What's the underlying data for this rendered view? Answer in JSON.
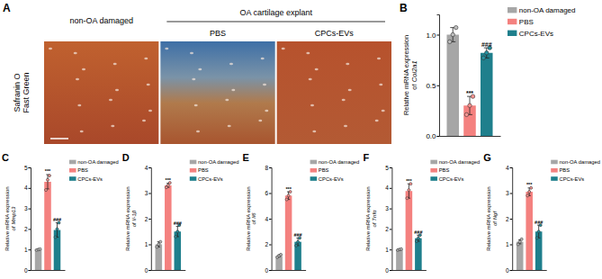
{
  "panel_a": {
    "panel": "A",
    "stain_label": [
      "Safranin O",
      "Fast Green"
    ],
    "group_label": "OA cartilage explant",
    "columns": [
      "non-OA damaged",
      "PBS",
      "CPCs-EVs"
    ]
  },
  "chart_data": [
    {
      "type": "bar",
      "panel": "B",
      "y_label": [
        "Relative mRNA expression",
        "of"
      ],
      "gene": "Col2a1",
      "categories": [
        null
      ],
      "series": [
        {
          "name": "non-OA damaged",
          "color": "#a6a6a6",
          "values": [
            1.0
          ],
          "errors": [
            0.07
          ],
          "points": [
            [
              0.93,
              1.0,
              1.07
            ]
          ]
        },
        {
          "name": "PBS",
          "color": "#f4817f",
          "values": [
            0.3
          ],
          "errors": [
            0.09
          ],
          "points": [
            [
              0.21,
              0.3,
              0.39
            ]
          ],
          "annotations": [
            "***"
          ]
        },
        {
          "name": "CPCs-EVs",
          "color": "#1f7f8c",
          "values": [
            0.82
          ],
          "errors": [
            0.05
          ],
          "points": [
            [
              0.77,
              0.82,
              0.87
            ]
          ],
          "annotations": [
            "###"
          ]
        }
      ],
      "ylim": [
        0,
        1.2
      ],
      "yticks": [
        {
          "value": 0,
          "label": "0.0"
        },
        0.5,
        {
          "value": 1,
          "label": "1.0"
        }
      ],
      "legend": "upper right",
      "tick_labels": "y",
      "grid": false
    },
    {
      "type": "bar",
      "panel": "C",
      "y_label": [
        "Relative mRNA expression",
        "of"
      ],
      "gene": "Mmp13",
      "categories": [
        null
      ],
      "series": [
        {
          "name": "non-OA damaged",
          "color": "#a6a6a6",
          "values": [
            1.0
          ],
          "errors": [
            0.03
          ],
          "points": [
            [
              0.97,
              1.0,
              1.02
            ]
          ]
        },
        {
          "name": "PBS",
          "color": "#f4817f",
          "values": [
            4.3
          ],
          "errors": [
            0.35
          ],
          "points": [
            [
              3.9,
              4.4,
              4.6
            ]
          ],
          "annotations": [
            "***"
          ]
        },
        {
          "name": "CPCs-EVs",
          "color": "#1f7f8c",
          "values": [
            1.95
          ],
          "errors": [
            0.35
          ],
          "points": [
            [
              1.6,
              2.0,
              2.3
            ]
          ],
          "annotations": [
            "###"
          ]
        }
      ],
      "ylim": [
        0,
        5
      ],
      "yticks": [
        0,
        1,
        2,
        3,
        4,
        5
      ],
      "legend": "upper right",
      "tick_labels": "y",
      "grid": false
    },
    {
      "type": "bar",
      "panel": "D",
      "y_label": [
        "Relative mRNA expression",
        "of"
      ],
      "gene": "Il-1β",
      "categories": [
        null
      ],
      "series": [
        {
          "name": "non-OA damaged",
          "color": "#a6a6a6",
          "values": [
            1.0
          ],
          "errors": [
            0.1
          ],
          "points": [
            [
              0.9,
              1.0,
              1.1
            ]
          ]
        },
        {
          "name": "PBS",
          "color": "#f4817f",
          "values": [
            3.3
          ],
          "errors": [
            0.08
          ],
          "points": [
            [
              3.22,
              3.3,
              3.4
            ]
          ],
          "annotations": [
            "***"
          ]
        },
        {
          "name": "CPCs-EVs",
          "color": "#1f7f8c",
          "values": [
            1.5
          ],
          "errors": [
            0.2
          ],
          "points": [
            [
              1.3,
              1.5,
              1.75
            ]
          ],
          "annotations": [
            "###"
          ]
        }
      ],
      "ylim": [
        0,
        4
      ],
      "yticks": [
        0,
        1,
        2,
        3,
        4
      ],
      "legend": "upper right",
      "tick_labels": "y",
      "grid": false
    },
    {
      "type": "bar",
      "panel": "E",
      "y_label": [
        "Relative mRNA expression",
        "of"
      ],
      "gene": "Il6",
      "categories": [
        null
      ],
      "series": [
        {
          "name": "non-OA damaged",
          "color": "#a6a6a6",
          "values": [
            1.1
          ],
          "errors": [
            0.08
          ],
          "points": [
            [
              1.0,
              1.1,
              1.2
            ]
          ]
        },
        {
          "name": "PBS",
          "color": "#f4817f",
          "values": [
            5.8
          ],
          "errors": [
            0.3
          ],
          "points": [
            [
              5.5,
              5.8,
              6.1
            ]
          ],
          "annotations": [
            "***"
          ]
        },
        {
          "name": "CPCs-EVs",
          "color": "#1f7f8c",
          "values": [
            2.2
          ],
          "errors": [
            0.3
          ],
          "points": [
            [
              1.9,
              2.2,
              2.5
            ]
          ],
          "annotations": [
            "###"
          ]
        }
      ],
      "ylim": [
        0,
        8
      ],
      "yticks": [
        0,
        2,
        4,
        6,
        8
      ],
      "legend": "upper right",
      "tick_labels": "y",
      "grid": false
    },
    {
      "type": "bar",
      "panel": "F",
      "y_label": [
        "Relative mRNA expression",
        "of"
      ],
      "gene": "Tnfα",
      "categories": [
        null
      ],
      "series": [
        {
          "name": "non-OA damaged",
          "color": "#a6a6a6",
          "values": [
            1.0
          ],
          "errors": [
            0.03
          ],
          "points": [
            [
              0.97,
              1.0,
              1.02
            ]
          ]
        },
        {
          "name": "PBS",
          "color": "#f4817f",
          "values": [
            3.85
          ],
          "errors": [
            0.35
          ],
          "points": [
            [
              3.5,
              3.9,
              4.2
            ]
          ],
          "annotations": [
            "***"
          ]
        },
        {
          "name": "CPCs-EVs",
          "color": "#1f7f8c",
          "values": [
            1.55
          ],
          "errors": [
            0.15
          ],
          "points": [
            [
              1.4,
              1.55,
              1.7
            ]
          ],
          "annotations": [
            "###"
          ]
        }
      ],
      "ylim": [
        0,
        5
      ],
      "yticks": [
        0,
        1,
        2,
        3,
        4,
        5
      ],
      "legend": "upper right",
      "tick_labels": "y",
      "grid": false
    },
    {
      "type": "bar",
      "panel": "G",
      "y_label": [
        "Relative mRNA expression",
        "of"
      ],
      "gene": "Ngf",
      "categories": [
        null
      ],
      "series": [
        {
          "name": "non-OA damaged",
          "color": "#a6a6a6",
          "values": [
            1.1
          ],
          "errors": [
            0.08
          ],
          "points": [
            [
              1.0,
              1.1,
              1.2
            ]
          ]
        },
        {
          "name": "PBS",
          "color": "#f4817f",
          "values": [
            3.05
          ],
          "errors": [
            0.15
          ],
          "points": [
            [
              2.9,
              3.05,
              3.2
            ]
          ],
          "annotations": [
            "***"
          ]
        },
        {
          "name": "CPCs-EVs",
          "color": "#1f7f8c",
          "values": [
            1.5
          ],
          "errors": [
            0.25
          ],
          "points": [
            [
              1.25,
              1.5,
              1.75
            ]
          ],
          "annotations": [
            "###"
          ]
        }
      ],
      "ylim": [
        0,
        4
      ],
      "yticks": [
        0,
        1,
        2,
        3,
        4
      ],
      "legend": "upper right",
      "tick_labels": "y",
      "grid": false
    }
  ]
}
